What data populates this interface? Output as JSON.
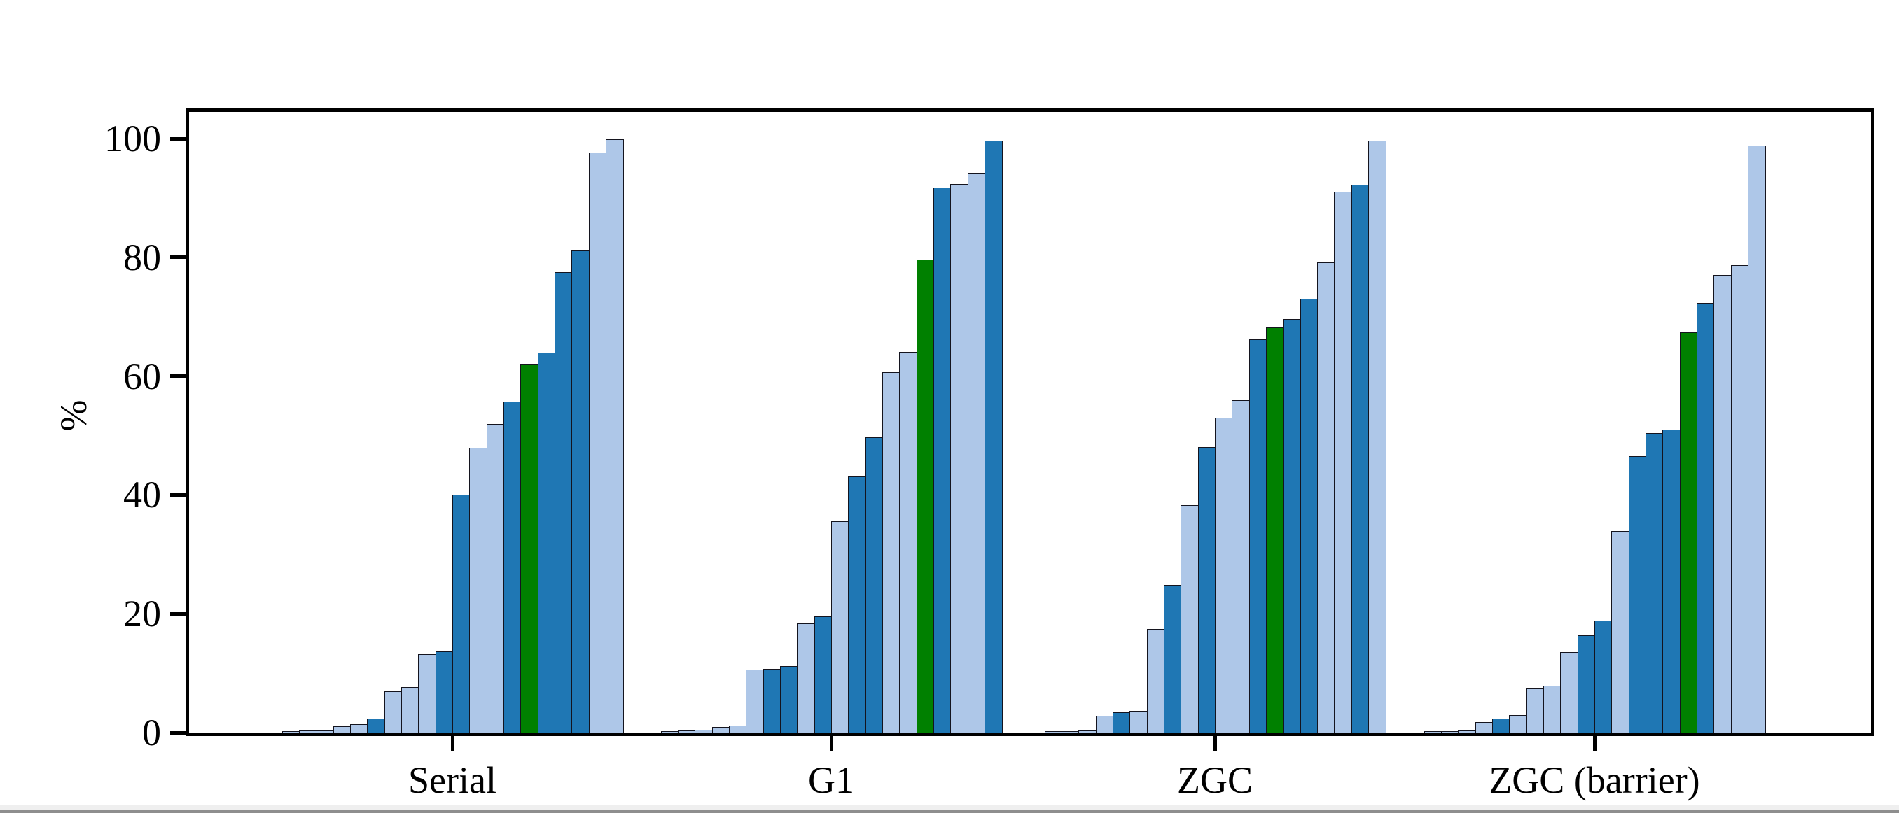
{
  "chart_data": {
    "type": "bar",
    "title": "",
    "xlabel": "",
    "ylabel": "%",
    "ylim": [
      0,
      100
    ],
    "yticks": [
      0,
      20,
      40,
      60,
      80,
      100
    ],
    "grid": false,
    "legend_position": "none",
    "bar_colors": {
      "light": "#aec7e8",
      "dark": "#1f77b4",
      "green": "#008000"
    },
    "bar_edge_color": "#14141e",
    "note": "Each group: per-benchmark percentages sorted ascending; green bar is the highlighted summary value",
    "groups": [
      {
        "label": "Serial",
        "bars": [
          {
            "v": 0.25,
            "c": "light"
          },
          {
            "v": 0.3,
            "c": "light"
          },
          {
            "v": 0.35,
            "c": "light"
          },
          {
            "v": 1.1,
            "c": "light"
          },
          {
            "v": 1.4,
            "c": "light"
          },
          {
            "v": 2.3,
            "c": "dark"
          },
          {
            "v": 7.0,
            "c": "light"
          },
          {
            "v": 7.7,
            "c": "light"
          },
          {
            "v": 13.2,
            "c": "light"
          },
          {
            "v": 13.7,
            "c": "dark"
          },
          {
            "v": 40.1,
            "c": "dark"
          },
          {
            "v": 47.9,
            "c": "light"
          },
          {
            "v": 52.0,
            "c": "light"
          },
          {
            "v": 55.7,
            "c": "dark"
          },
          {
            "v": 62.1,
            "c": "green"
          },
          {
            "v": 64.0,
            "c": "dark"
          },
          {
            "v": 77.5,
            "c": "dark"
          },
          {
            "v": 81.2,
            "c": "dark"
          },
          {
            "v": 97.6,
            "c": "light"
          },
          {
            "v": 99.9,
            "c": "light"
          }
        ]
      },
      {
        "label": "G1",
        "bars": [
          {
            "v": 0.2,
            "c": "light"
          },
          {
            "v": 0.4,
            "c": "light"
          },
          {
            "v": 0.5,
            "c": "light"
          },
          {
            "v": 1.0,
            "c": "light"
          },
          {
            "v": 1.2,
            "c": "light"
          },
          {
            "v": 10.6,
            "c": "light"
          },
          {
            "v": 10.7,
            "c": "dark"
          },
          {
            "v": 11.2,
            "c": "dark"
          },
          {
            "v": 18.4,
            "c": "light"
          },
          {
            "v": 19.5,
            "c": "dark"
          },
          {
            "v": 35.6,
            "c": "light"
          },
          {
            "v": 43.1,
            "c": "dark"
          },
          {
            "v": 49.7,
            "c": "dark"
          },
          {
            "v": 60.7,
            "c": "light"
          },
          {
            "v": 64.1,
            "c": "light"
          },
          {
            "v": 79.6,
            "c": "green"
          },
          {
            "v": 91.7,
            "c": "dark"
          },
          {
            "v": 92.3,
            "c": "light"
          },
          {
            "v": 94.2,
            "c": "light"
          },
          {
            "v": 99.7,
            "c": "dark"
          }
        ]
      },
      {
        "label": "ZGC",
        "bars": [
          {
            "v": 0.2,
            "c": "light"
          },
          {
            "v": 0.25,
            "c": "light"
          },
          {
            "v": 0.3,
            "c": "light"
          },
          {
            "v": 2.8,
            "c": "light"
          },
          {
            "v": 3.4,
            "c": "dark"
          },
          {
            "v": 3.6,
            "c": "light"
          },
          {
            "v": 17.4,
            "c": "light"
          },
          {
            "v": 24.8,
            "c": "dark"
          },
          {
            "v": 38.3,
            "c": "light"
          },
          {
            "v": 48.0,
            "c": "dark"
          },
          {
            "v": 53.0,
            "c": "light"
          },
          {
            "v": 56.0,
            "c": "light"
          },
          {
            "v": 66.2,
            "c": "dark"
          },
          {
            "v": 68.2,
            "c": "green"
          },
          {
            "v": 69.6,
            "c": "dark"
          },
          {
            "v": 73.0,
            "c": "dark"
          },
          {
            "v": 79.2,
            "c": "light"
          },
          {
            "v": 91.0,
            "c": "light"
          },
          {
            "v": 92.2,
            "c": "dark"
          },
          {
            "v": 99.7,
            "c": "light"
          }
        ]
      },
      {
        "label": "ZGC (barrier)",
        "bars": [
          {
            "v": 0.2,
            "c": "light"
          },
          {
            "v": 0.25,
            "c": "light"
          },
          {
            "v": 0.3,
            "c": "light"
          },
          {
            "v": 1.8,
            "c": "light"
          },
          {
            "v": 2.3,
            "c": "dark"
          },
          {
            "v": 2.9,
            "c": "light"
          },
          {
            "v": 7.4,
            "c": "light"
          },
          {
            "v": 7.9,
            "c": "light"
          },
          {
            "v": 13.5,
            "c": "light"
          },
          {
            "v": 16.4,
            "c": "dark"
          },
          {
            "v": 18.9,
            "c": "dark"
          },
          {
            "v": 33.9,
            "c": "light"
          },
          {
            "v": 46.5,
            "c": "dark"
          },
          {
            "v": 50.4,
            "c": "dark"
          },
          {
            "v": 51.0,
            "c": "dark"
          },
          {
            "v": 67.4,
            "c": "green"
          },
          {
            "v": 72.3,
            "c": "dark"
          },
          {
            "v": 77.0,
            "c": "light"
          },
          {
            "v": 78.7,
            "c": "light"
          },
          {
            "v": 98.8,
            "c": "light"
          }
        ]
      }
    ]
  },
  "chrome": {
    "scrollbar_track_color": "#efefef",
    "window_edge_color": "#8e8e8e"
  }
}
